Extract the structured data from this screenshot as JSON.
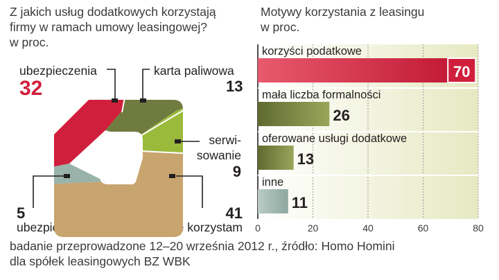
{
  "left_title": [
    "Z jakich usług dodatkowych korzystają",
    "firmy w ramach umowy leasingowej?",
    "w proc."
  ],
  "right_title": [
    "Motywy korzystania z leasingu",
    "w proc."
  ],
  "footer": [
    "badanie przeprowadzone 12–20 września 2012 r., źródło: Homo Homini",
    "dla spółek leasingowych BZ WBK"
  ],
  "colors": {
    "red": "#d01f3c",
    "olive": "#6f7b3f",
    "lime": "#9aba3c",
    "tan": "#c8a46e",
    "gray": "#9ab3aa",
    "panel": "#f1f2dc"
  },
  "chart_data": [
    {
      "type": "pie",
      "title": "Z jakich usług dodatkowych korzystają firmy w ramach umowy leasingowej? w proc.",
      "slices": [
        {
          "label": "ubezpieczenia",
          "value": 32,
          "color": "#d01f3c"
        },
        {
          "label": "karta paliwowa",
          "value": 13,
          "color": "#6f7b3f"
        },
        {
          "label": "serwisowanie",
          "value": 9,
          "color": "#9aba3c"
        },
        {
          "label": "nie korzystam",
          "value": 41,
          "color": "#c8a46e"
        },
        {
          "label": "ubezpieczenia",
          "value": 5,
          "color": "#9ab3aa"
        }
      ],
      "labels": {
        "ubezp_top": {
          "text": "ubezpieczenia",
          "value": "32"
        },
        "karta": {
          "text": "karta paliwowa",
          "value": "13"
        },
        "serw": {
          "line1": "serwi-",
          "line2": "sowanie",
          "value": "9"
        },
        "nie": {
          "text": "nie korzystam",
          "value": "41"
        },
        "ubezp_bottom": {
          "text": "ubezpieczenia",
          "value": "5"
        }
      }
    },
    {
      "type": "bar",
      "orientation": "horizontal",
      "title": "Motywy korzystania z leasingu w proc.",
      "categories": [
        "korzyści podatkowe",
        "mała liczba formalności",
        "oferowane usługi dodatkowe",
        "inne"
      ],
      "values": [
        70,
        26,
        13,
        11
      ],
      "value_labels": [
        "70",
        "26",
        "13",
        "11"
      ],
      "xlim": [
        0,
        80
      ],
      "xticks": [
        "0",
        "20",
        "40",
        "60",
        "80"
      ],
      "grid": true
    }
  ]
}
